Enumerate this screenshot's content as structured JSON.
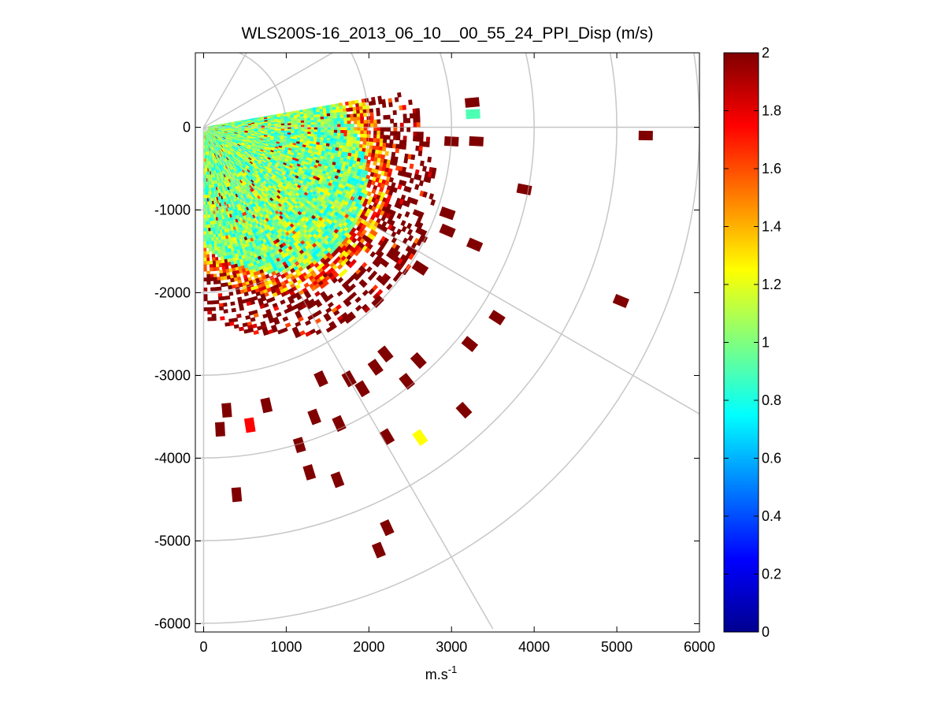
{
  "chart_data": {
    "type": "heatmap",
    "title": "WLS200S-16_2013_06_10__00_55_24_PPI_Disp (m/s)",
    "xlabel": "m.s",
    "xlabel_superscript": "-1",
    "ylabel": "",
    "xlim": [
      -100,
      6000
    ],
    "ylim": [
      -6100,
      900
    ],
    "x_ticks": [
      0,
      1000,
      2000,
      3000,
      4000,
      5000,
      6000
    ],
    "y_ticks": [
      0,
      -1000,
      -2000,
      -3000,
      -4000,
      -5000,
      -6000
    ],
    "polar_rings": [
      1000,
      2000,
      3000,
      4000,
      5000,
      6000
    ],
    "polar_spokes_deg": [
      0,
      -30,
      -60,
      -90,
      30,
      60
    ],
    "grid": true,
    "colorbar": {
      "colormap": "jet",
      "range": [
        0,
        2
      ],
      "ticks": [
        "0",
        "0.2",
        "0.4",
        "0.6",
        "0.8",
        "1",
        "1.2",
        "1.4",
        "1.6",
        "1.8",
        "2"
      ]
    },
    "scan_sector": {
      "az_start_deg": 10,
      "az_end_deg": -90,
      "dense_range_max": 2200,
      "dense_typical_value": 1.0
    },
    "isolated_cells": [
      {
        "x": 5350,
        "y": -100,
        "v": 2.0
      },
      {
        "x": 3880,
        "y": -750,
        "v": 2.0
      },
      {
        "x": 3280,
        "y": -1420,
        "v": 2.0
      },
      {
        "x": 5050,
        "y": -2100,
        "v": 2.0
      },
      {
        "x": 3550,
        "y": -2300,
        "v": 2.0
      },
      {
        "x": 3220,
        "y": -2620,
        "v": 2.0
      },
      {
        "x": 2620,
        "y": -1700,
        "v": 2.0
      },
      {
        "x": 2600,
        "y": -2820,
        "v": 2.0
      },
      {
        "x": 2460,
        "y": -3070,
        "v": 2.0
      },
      {
        "x": 3150,
        "y": -3420,
        "v": 2.0
      },
      {
        "x": 2620,
        "y": -3750,
        "v": 1.25
      },
      {
        "x": 2220,
        "y": -3740,
        "v": 2.0
      },
      {
        "x": 1920,
        "y": -3160,
        "v": 2.0
      },
      {
        "x": 1640,
        "y": -3580,
        "v": 2.0
      },
      {
        "x": 1160,
        "y": -3840,
        "v": 2.0
      },
      {
        "x": 1280,
        "y": -4170,
        "v": 2.0
      },
      {
        "x": 1620,
        "y": -4260,
        "v": 2.0
      },
      {
        "x": 400,
        "y": -4440,
        "v": 2.0
      },
      {
        "x": 2220,
        "y": -4840,
        "v": 2.0
      },
      {
        "x": 2120,
        "y": -5110,
        "v": 2.0
      },
      {
        "x": 200,
        "y": -3650,
        "v": 2.0
      },
      {
        "x": 560,
        "y": -3600,
        "v": 1.75
      },
      {
        "x": 280,
        "y": -3420,
        "v": 2.0
      },
      {
        "x": 760,
        "y": -3360,
        "v": 2.0
      },
      {
        "x": 1340,
        "y": -3500,
        "v": 2.0
      },
      {
        "x": 1420,
        "y": -3040,
        "v": 2.0
      },
      {
        "x": 1760,
        "y": -3040,
        "v": 2.0
      },
      {
        "x": 2080,
        "y": -2900,
        "v": 2.0
      },
      {
        "x": 2200,
        "y": -2740,
        "v": 2.0
      },
      {
        "x": 3250,
        "y": 300,
        "v": 2.0
      },
      {
        "x": 3260,
        "y": 160,
        "v": 0.9
      },
      {
        "x": 3300,
        "y": -170,
        "v": 2.0
      },
      {
        "x": 3000,
        "y": -170,
        "v": 2.0
      },
      {
        "x": 2950,
        "y": -1040,
        "v": 2.0
      },
      {
        "x": 2950,
        "y": -1250,
        "v": 2.0
      }
    ]
  }
}
